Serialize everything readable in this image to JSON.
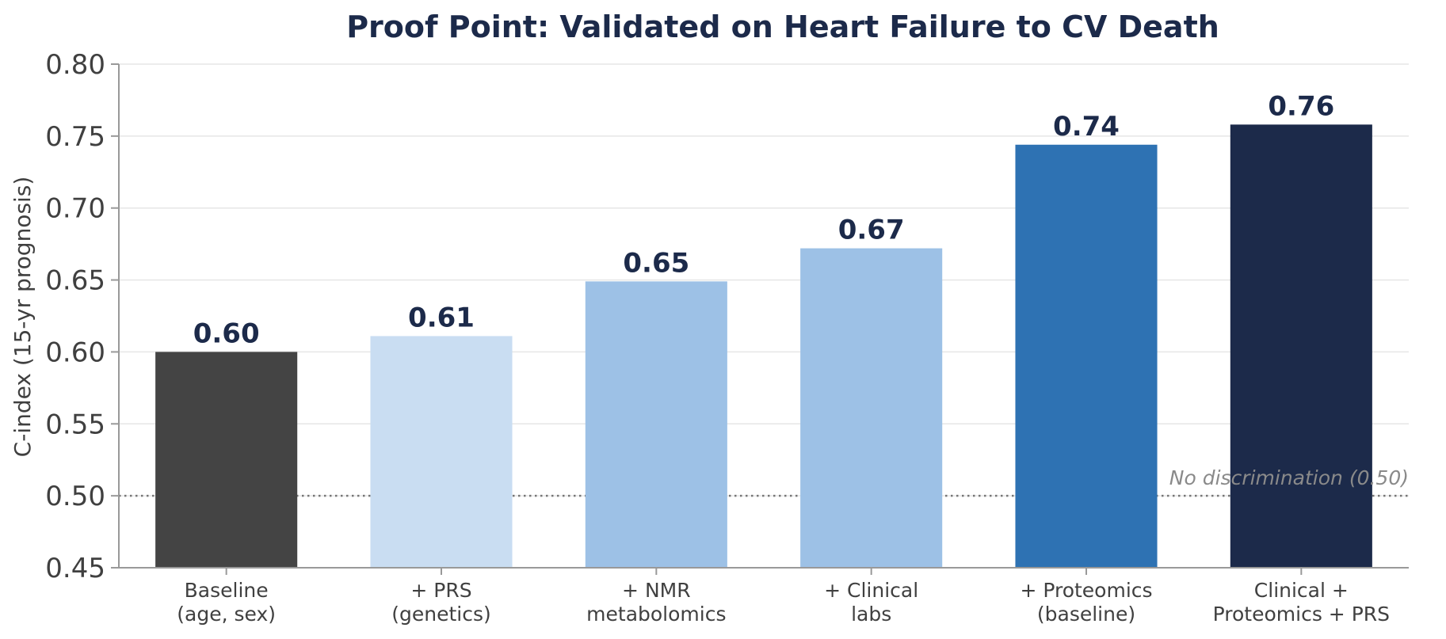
{
  "chart_data": {
    "type": "bar",
    "title": "Proof Point: Validated on Heart Failure to CV Death",
    "xlabel": "",
    "ylabel": "C-index (15-yr prognosis)",
    "ylim": [
      0.45,
      0.8
    ],
    "yticks": [
      "0.45",
      "0.50",
      "0.55",
      "0.60",
      "0.65",
      "0.70",
      "0.75",
      "0.80"
    ],
    "grid": "horizontal",
    "categories": [
      [
        "Baseline",
        "(age, sex)"
      ],
      [
        "+ PRS",
        "(genetics)"
      ],
      [
        "+ NMR",
        "metabolomics"
      ],
      [
        "+ Clinical",
        "labs"
      ],
      [
        "+ Proteomics",
        "(baseline)"
      ],
      [
        "Clinical +",
        "Proteomics + PRS"
      ]
    ],
    "values": [
      0.6,
      0.611,
      0.649,
      0.672,
      0.744,
      0.758
    ],
    "value_labels": [
      "0.60",
      "0.61",
      "0.65",
      "0.67",
      "0.74",
      "0.76"
    ],
    "colors": [
      "#444444",
      "#c9ddf2",
      "#9dc1e6",
      "#9dc1e6",
      "#2e72b3",
      "#1c2a4a"
    ],
    "reference_line": {
      "value": 0.5,
      "label": "No discrimination (0.50)",
      "color": "#777777"
    }
  }
}
